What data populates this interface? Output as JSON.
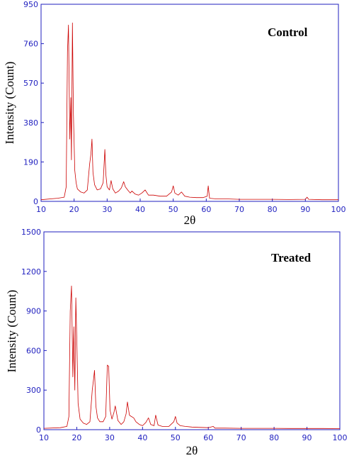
{
  "chart_data": [
    {
      "type": "line",
      "title": "Control",
      "xlabel": "2θ",
      "ylabel": "Intensity (Count)",
      "xlim": [
        10,
        100
      ],
      "ylim": [
        0,
        950
      ],
      "xticks": [
        "10",
        "20",
        "30",
        "40",
        "50",
        "60",
        "70",
        "80",
        "90",
        "100"
      ],
      "yticks": [
        "0",
        "190",
        "380",
        "570",
        "760",
        "950"
      ],
      "grid": false,
      "series": [
        {
          "color": "#cc0000",
          "x": [
            10,
            15,
            17,
            17.6,
            18,
            18.3,
            18.7,
            19,
            19.2,
            19.5,
            19.8,
            20.2,
            20.6,
            21,
            22,
            23,
            24,
            24.7,
            25.1,
            25.4,
            25.7,
            26.2,
            27,
            28,
            28.8,
            29.3,
            29.6,
            30,
            30.7,
            31.2,
            31.7,
            32.5,
            33.5,
            34.3,
            35,
            35.5,
            36.2,
            37,
            37.5,
            38.5,
            39.5,
            40.5,
            41.5,
            42.5,
            44,
            46,
            48,
            49.5,
            50,
            50.5,
            51.5,
            52.5,
            53.5,
            55,
            57,
            59,
            60.3,
            60.6,
            61,
            63,
            66,
            70,
            75,
            80,
            85,
            90,
            90.5,
            91,
            95,
            100
          ],
          "y": [
            8,
            15,
            20,
            70,
            720,
            850,
            300,
            500,
            200,
            860,
            420,
            150,
            90,
            60,
            45,
            40,
            55,
            180,
            230,
            300,
            140,
            80,
            55,
            60,
            90,
            250,
            130,
            70,
            55,
            100,
            60,
            40,
            50,
            65,
            95,
            70,
            55,
            40,
            50,
            35,
            30,
            40,
            55,
            30,
            30,
            25,
            25,
            45,
            75,
            40,
            30,
            45,
            25,
            20,
            18,
            18,
            25,
            75,
            15,
            12,
            12,
            10,
            10,
            10,
            9,
            10,
            20,
            10,
            8,
            8
          ]
        }
      ]
    },
    {
      "type": "line",
      "title": "Treated",
      "xlabel": "2θ",
      "ylabel": "Intensity (Count)",
      "xlim": [
        10,
        100
      ],
      "ylim": [
        0,
        1500
      ],
      "xticks": [
        "10",
        "20",
        "30",
        "40",
        "50",
        "60",
        "70",
        "80",
        "90",
        "100"
      ],
      "yticks": [
        "0",
        "300",
        "600",
        "900",
        "1200",
        "1500"
      ],
      "grid": false,
      "series": [
        {
          "color": "#cc0000",
          "x": [
            10,
            15,
            17,
            17.6,
            18,
            18.4,
            18.8,
            19.1,
            19.4,
            19.7,
            20,
            20.4,
            21,
            22,
            23,
            24,
            24.7,
            25.1,
            25.4,
            25.8,
            26.3,
            27,
            28,
            28.8,
            29.3,
            29.7,
            30.1,
            30.7,
            31.3,
            31.7,
            32.5,
            33.5,
            34.3,
            35,
            35.4,
            36,
            36.6,
            37.3,
            38,
            39,
            40,
            41,
            41.8,
            42.5,
            43.5,
            44,
            44.7,
            46,
            48,
            49.5,
            50,
            50.5,
            51.5,
            53,
            55,
            57,
            60,
            61.5,
            62,
            65,
            70,
            75,
            80,
            85,
            90,
            95,
            100
          ],
          "y": [
            10,
            15,
            25,
            100,
            900,
            1090,
            400,
            780,
            300,
            1000,
            700,
            200,
            80,
            50,
            40,
            60,
            300,
            380,
            450,
            180,
            90,
            60,
            60,
            100,
            490,
            480,
            150,
            80,
            130,
            180,
            70,
            40,
            60,
            120,
            210,
            110,
            100,
            90,
            60,
            40,
            30,
            55,
            90,
            40,
            30,
            110,
            35,
            25,
            25,
            60,
            100,
            50,
            30,
            25,
            20,
            18,
            15,
            25,
            12,
            12,
            10,
            10,
            10,
            9,
            9,
            9,
            8
          ]
        }
      ]
    }
  ]
}
